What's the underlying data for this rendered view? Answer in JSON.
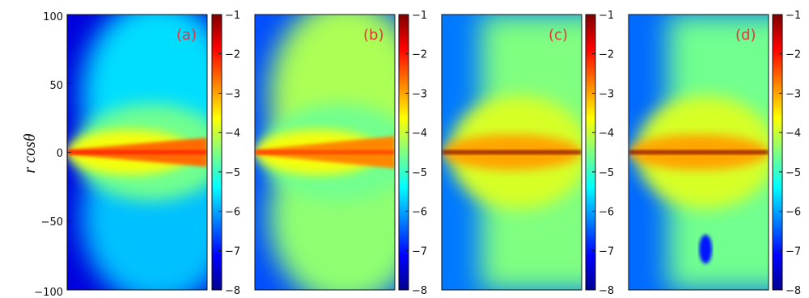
{
  "chart_data": {
    "type": "heatmap",
    "ylabel": "r cosθ",
    "ylim": [
      -100,
      100
    ],
    "yticks": [
      "100",
      "50",
      "0",
      "−50",
      "−100"
    ],
    "colorbar": {
      "range": [
        -8,
        -1
      ],
      "ticks": [
        "−1",
        "−2",
        "−3",
        "−4",
        "−5",
        "−6",
        "−7",
        "−8"
      ],
      "colormap": [
        "#00008f",
        "#0000ff",
        "#0080ff",
        "#00ffff",
        "#80ff80",
        "#ffff00",
        "#ff8000",
        "#ff0000",
        "#800000"
      ]
    },
    "panels": [
      {
        "label": "(a)",
        "disk_value": -2.6,
        "background_value": -6.8
      },
      {
        "label": "(b)",
        "disk_value": -2.8,
        "background_value": -6.0
      },
      {
        "label": "(c)",
        "disk_value": -1.6,
        "background_value": -4.5
      },
      {
        "label": "(d)",
        "disk_value": -1.6,
        "background_value": -4.6
      }
    ]
  }
}
